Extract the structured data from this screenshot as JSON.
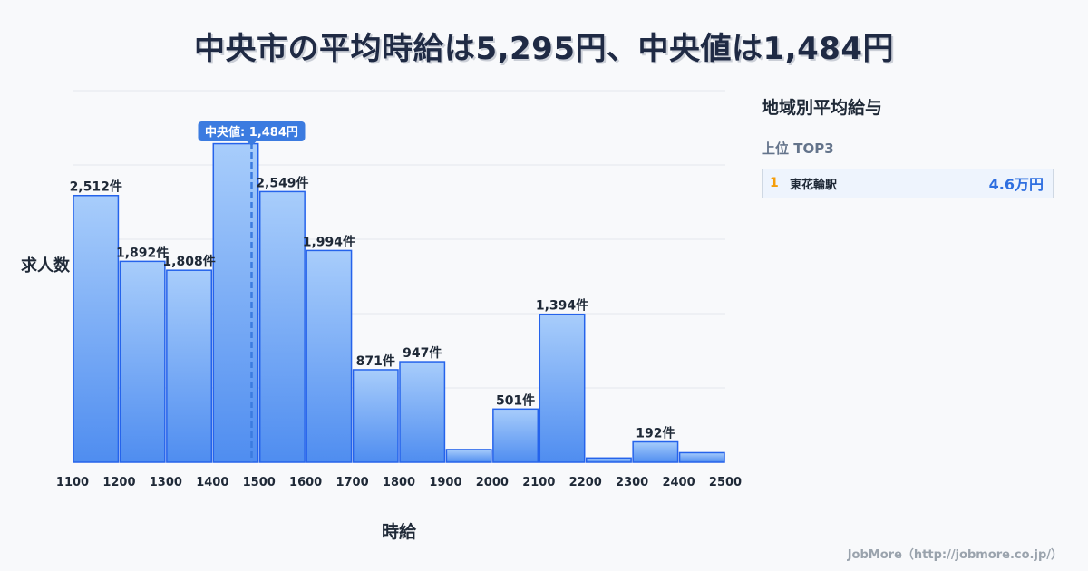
{
  "title": "中央市の平均時給は5,295円、中央値は1,484円",
  "sidebar": {
    "title": "地域別平均給与",
    "subtitle": "上位 TOP3",
    "items": [
      {
        "rank": "1",
        "name": "東花輪駅",
        "value": "4.6万円"
      }
    ]
  },
  "footer": "JobMore（http://jobmore.co.jp/）",
  "chart_data": {
    "type": "bar",
    "title": "中央市の平均時給は5,295円、中央値は1,484円",
    "xlabel": "時給",
    "ylabel": "求人数",
    "x_ticks": [
      "1100",
      "1200",
      "1300",
      "1400",
      "1500",
      "1600",
      "1700",
      "1800",
      "1900",
      "2000",
      "2100",
      "2200",
      "2300",
      "2400",
      "2500"
    ],
    "bins": [
      {
        "start": 1100,
        "end": 1200,
        "value": 2512,
        "label": "2,512件"
      },
      {
        "start": 1200,
        "end": 1300,
        "value": 1892,
        "label": "1,892件"
      },
      {
        "start": 1300,
        "end": 1400,
        "value": 1808,
        "label": "1,808件"
      },
      {
        "start": 1400,
        "end": 1500,
        "value": 3000,
        "label": ""
      },
      {
        "start": 1500,
        "end": 1600,
        "value": 2549,
        "label": "2,549件"
      },
      {
        "start": 1600,
        "end": 1700,
        "value": 1994,
        "label": "1,994件"
      },
      {
        "start": 1700,
        "end": 1800,
        "value": 871,
        "label": "871件"
      },
      {
        "start": 1800,
        "end": 1900,
        "value": 947,
        "label": "947件"
      },
      {
        "start": 1900,
        "end": 2000,
        "value": 120,
        "label": ""
      },
      {
        "start": 2000,
        "end": 2100,
        "value": 501,
        "label": "501件"
      },
      {
        "start": 2100,
        "end": 2200,
        "value": 1394,
        "label": "1,394件"
      },
      {
        "start": 2200,
        "end": 2300,
        "value": 40,
        "label": ""
      },
      {
        "start": 2300,
        "end": 2400,
        "value": 192,
        "label": "192件"
      },
      {
        "start": 2400,
        "end": 2500,
        "value": 90,
        "label": ""
      }
    ],
    "xlim": [
      1100,
      2500
    ],
    "ylim": [
      0,
      3500
    ],
    "grid": true,
    "median": {
      "value": 1484,
      "label": "中央値: 1,484円"
    },
    "colors": {
      "bar_top": "#a8cdfb",
      "bar_bottom": "#4f8df0",
      "bar_stroke": "#2563eb",
      "median": "#3b7be0"
    }
  }
}
